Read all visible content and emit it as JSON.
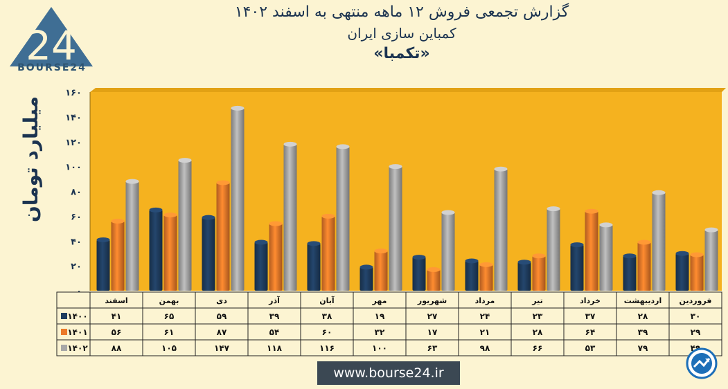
{
  "logo": {
    "text": "BOURSE24"
  },
  "header": {
    "line1": "گزارش تجمعی فروش ۱۲ ماهه منتهی به اسفند ۱۴۰۲",
    "line2": "کمباین سازی ایران",
    "line3": "«تکمبا»"
  },
  "footer": {
    "url": "www.bourse24.ir"
  },
  "colors": {
    "background": "#fcf4d2",
    "plot": "#f5b21f",
    "s1400": "#1f3d5f",
    "s1401": "#ec7a2a",
    "s1402": "#a7a7a7"
  },
  "chart_data": {
    "type": "bar",
    "title": "گزارش تجمعی فروش ۱۲ ماهه منتهی به اسفند ۱۴۰۲",
    "subtitle": "کمباین سازی ایران «تکمبا»",
    "ylabel": "میلیارد تومان",
    "xlabel": "",
    "ylim": [
      0,
      160
    ],
    "yticks": [
      "۰",
      "۲۰",
      "۴۰",
      "۶۰",
      "۸۰",
      "۱۰۰",
      "۱۲۰",
      "۱۴۰",
      "۱۶۰"
    ],
    "grid": false,
    "legend": "data-table",
    "categories": [
      "اسفند",
      "بهمن",
      "دی",
      "آذر",
      "آبان",
      "مهر",
      "شهریور",
      "مرداد",
      "تیر",
      "خرداد",
      "اردیبهشت",
      "فروردین"
    ],
    "series": [
      {
        "name": "۱۴۰۰",
        "values": [
          41,
          65,
          59,
          39,
          38,
          19,
          27,
          24,
          23,
          37,
          28,
          30
        ],
        "labels": [
          "۴۱",
          "۶۵",
          "۵۹",
          "۳۹",
          "۳۸",
          "۱۹",
          "۲۷",
          "۲۴",
          "۲۳",
          "۳۷",
          "۲۸",
          "۳۰"
        ]
      },
      {
        "name": "۱۴۰۱",
        "values": [
          56,
          61,
          87,
          54,
          60,
          32,
          17,
          21,
          28,
          64,
          39,
          29
        ],
        "labels": [
          "۵۶",
          "۶۱",
          "۸۷",
          "۵۴",
          "۶۰",
          "۳۲",
          "۱۷",
          "۲۱",
          "۲۸",
          "۶۴",
          "۳۹",
          "۲۹"
        ]
      },
      {
        "name": "۱۴۰۲",
        "values": [
          88,
          105,
          147,
          118,
          116,
          100,
          63,
          98,
          66,
          53,
          79,
          49
        ],
        "labels": [
          "۸۸",
          "۱۰۵",
          "۱۴۷",
          "۱۱۸",
          "۱۱۶",
          "۱۰۰",
          "۶۳",
          "۹۸",
          "۶۶",
          "۵۳",
          "۷۹",
          "۴۹"
        ]
      }
    ]
  }
}
